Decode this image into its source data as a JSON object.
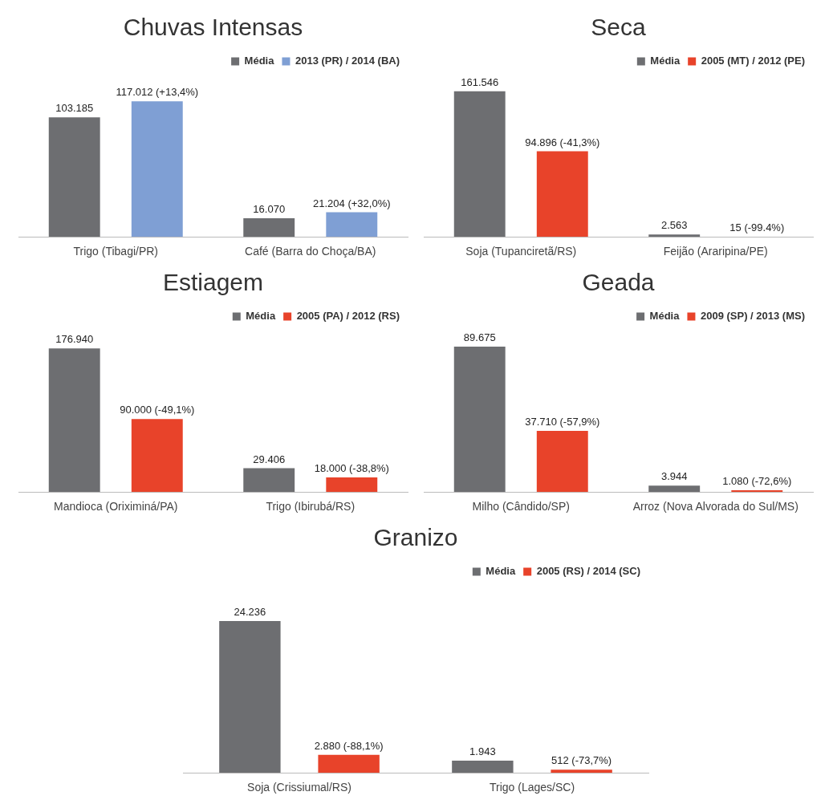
{
  "chart_data": [
    {
      "type": "bar",
      "title": "Chuvas Intensas",
      "categories": [
        "Trigo (Tibagi/PR)",
        "Café (Barra do Choça/BA)"
      ],
      "legend": "top right",
      "series": [
        {
          "name": "Média",
          "color": "#6d6e71",
          "values": [
            103185,
            16070
          ],
          "value_labels": [
            "103.185",
            "16.070"
          ]
        },
        {
          "name": "2013 (PR) / 2014 (BA)",
          "color": "#7f9fd4",
          "values": [
            117012,
            21204
          ],
          "value_labels": [
            "117.012 (+13,4%)",
            "21.204 (+32,0%)"
          ]
        }
      ]
    },
    {
      "type": "bar",
      "title": "Seca",
      "categories": [
        "Soja (Tupanciretã/RS)",
        "Feijão (Araripina/PE)"
      ],
      "legend": "top right",
      "series": [
        {
          "name": "Média",
          "color": "#6d6e71",
          "values": [
            161546,
            2563
          ],
          "value_labels": [
            "161.546",
            "2.563"
          ]
        },
        {
          "name": "2005 (MT) / 2012 (PE)",
          "color": "#e8432a",
          "values": [
            94896,
            15
          ],
          "value_labels": [
            "94.896 (-41,3%)",
            "15 (-99.4%)"
          ]
        }
      ]
    },
    {
      "type": "bar",
      "title": "Estiagem",
      "categories": [
        "Mandioca (Oriximiná/PA)",
        "Trigo (Ibirubá/RS)"
      ],
      "legend": "top right",
      "series": [
        {
          "name": "Média",
          "color": "#6d6e71",
          "values": [
            176940,
            29406
          ],
          "value_labels": [
            "176.940",
            "29.406"
          ]
        },
        {
          "name": "2005 (PA) / 2012 (RS)",
          "color": "#e8432a",
          "values": [
            90000,
            18000
          ],
          "value_labels": [
            "90.000 (-49,1%)",
            "18.000 (-38,8%)"
          ]
        }
      ]
    },
    {
      "type": "bar",
      "title": "Geada",
      "categories": [
        "Milho (Cândido/SP)",
        "Arroz (Nova Alvorada do Sul/MS)"
      ],
      "legend": "top right",
      "series": [
        {
          "name": "Média",
          "color": "#6d6e71",
          "values": [
            89675,
            3944
          ],
          "value_labels": [
            "89.675",
            "3.944"
          ]
        },
        {
          "name": "2009 (SP) / 2013 (MS)",
          "color": "#e8432a",
          "values": [
            37710,
            1080
          ],
          "value_labels": [
            "37.710 (-57,9%)",
            "1.080 (-72,6%)"
          ]
        }
      ]
    },
    {
      "type": "bar",
      "title": "Granizo",
      "categories": [
        "Soja (Crissiumal/RS)",
        "Trigo (Lages/SC)"
      ],
      "legend": "top right",
      "series": [
        {
          "name": "Média",
          "color": "#6d6e71",
          "values": [
            24236,
            1943
          ],
          "value_labels": [
            "24.236",
            "1.943"
          ]
        },
        {
          "name": "2005 (RS) / 2014 (SC)",
          "color": "#e8432a",
          "values": [
            2880,
            512
          ],
          "value_labels": [
            "2.880 (-88,1%)",
            "512 (-73,7%)"
          ]
        }
      ]
    }
  ]
}
